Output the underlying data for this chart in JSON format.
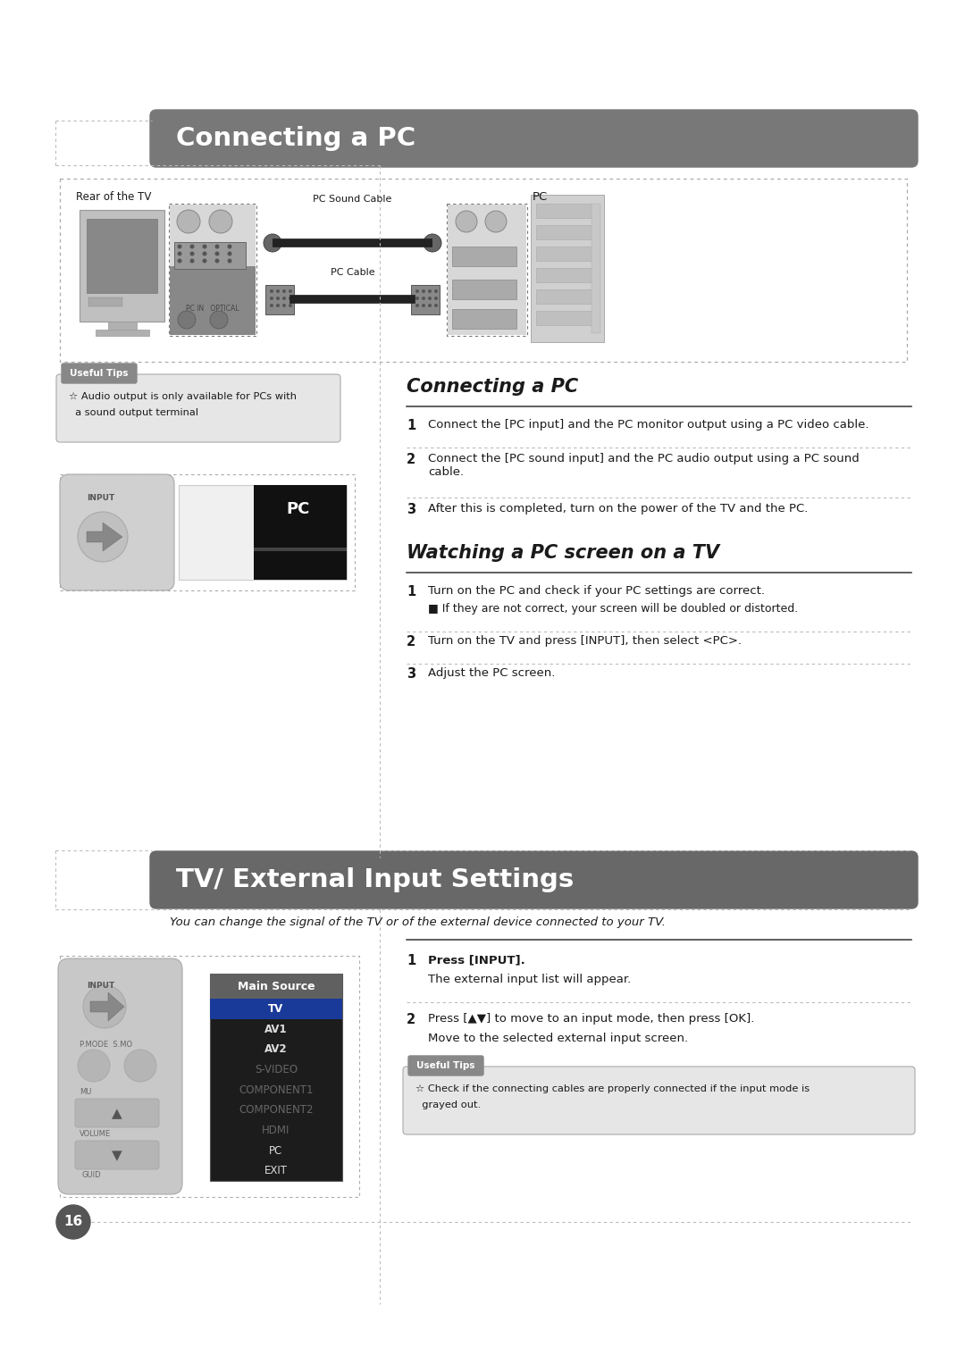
{
  "bg_color": "#ffffff",
  "page_number": "16",
  "section1_title": "Connecting a PC",
  "section2_title": "TV/ External Input Settings",
  "section2_subtitle": "You can change the signal of the TV or of the external device connected to your TV.",
  "useful_tips_title": "Useful Tips",
  "useful_tips1_line1": "☆ Audio output is only available for PCs with",
  "useful_tips1_line2": "  a sound output terminal",
  "useful_tips2_line1": "☆ Check if the connecting cables are properly connected if the input mode is",
  "useful_tips2_line2": "  grayed out.",
  "connecting_pc_heading": "Connecting a PC",
  "connecting_pc_steps": [
    "Connect the [PC input] and the PC monitor output using a PC video cable.",
    "Connect the [PC sound input] and the PC audio output using a PC sound\ncable.",
    "After this is completed, turn on the power of the TV and the PC."
  ],
  "watching_heading": "Watching a PC screen on a TV",
  "watching_steps": [
    "Turn on the PC and check if your PC settings are correct.",
    "Turn on the TV and press [INPUT], then select <PC>.",
    "Adjust the PC screen."
  ],
  "watching_step1_sub": "■ If they are not correct, your screen will be doubled or distorted.",
  "section2_steps_1a": "Press [INPUT].",
  "section2_steps_1b": "The external input list will appear.",
  "section2_steps_2a": "Press [▲▼] to move to an input mode, then press [OK].",
  "section2_steps_2b": "Move to the selected external input screen.",
  "main_source_items": [
    "TV",
    "AV1",
    "AV2",
    "S-VIDEO",
    "COMPONENT1",
    "COMPONENT2",
    "HDMI",
    "PC",
    "EXIT"
  ],
  "main_source_highlighted": "TV",
  "header_gray": "#787878",
  "mid_gray": "#aaaaaa",
  "light_gray": "#e6e6e6",
  "dark_text": "#1a1a1a",
  "med_text": "#444444",
  "tips_tab_gray": "#888888"
}
